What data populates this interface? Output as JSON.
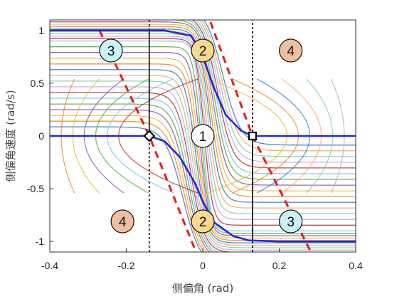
{
  "chart_data": {
    "type": "line",
    "title": "",
    "xlabel": "侧偏角 (rad)",
    "ylabel": "侧偏角速度 (rad/s)",
    "xlim": [
      -0.4,
      0.4
    ],
    "ylim": [
      -1.1,
      1.1
    ],
    "x_ticks": [
      "-0.4",
      "-0.2",
      "0",
      "0.2",
      "0.4"
    ],
    "y_ticks": [
      "1",
      "0.5",
      "0",
      "-0.5",
      "-1"
    ],
    "x_tick_values": [
      -0.4,
      -0.2,
      0,
      0.2,
      0.4
    ],
    "y_tick_values": [
      1,
      0.5,
      0,
      -0.5,
      -1
    ],
    "grid": false,
    "equilibria": [
      {
        "label": "diamond",
        "x": -0.14,
        "y": 0.0
      },
      {
        "label": "square",
        "x": 0.13,
        "y": 0.0
      }
    ],
    "separatrices": [
      {
        "name": "blue-upper",
        "color": "#2626e0",
        "x": [
          -0.4,
          -0.3,
          -0.2,
          -0.1,
          -0.03,
          0.0,
          0.03,
          0.06,
          0.1,
          0.13,
          0.2,
          0.3,
          0.4
        ],
        "y": [
          1.0,
          1.0,
          1.0,
          1.0,
          0.95,
          0.75,
          0.45,
          0.2,
          0.05,
          0.0,
          0.0,
          0.0,
          0.0
        ]
      },
      {
        "name": "blue-lower",
        "color": "#2626e0",
        "x": [
          -0.4,
          -0.3,
          -0.2,
          -0.14,
          -0.1,
          -0.06,
          -0.02,
          0.0,
          0.03,
          0.08,
          0.12,
          0.2,
          0.3,
          0.4
        ],
        "y": [
          0.0,
          0.0,
          0.0,
          0.0,
          -0.05,
          -0.2,
          -0.45,
          -0.62,
          -0.82,
          -0.95,
          -0.99,
          -1.0,
          -1.0,
          -1.0
        ]
      }
    ],
    "boundary_lines": [
      {
        "name": "red-dashed-left",
        "color": "#e02020",
        "x": [
          -0.27,
          -0.14,
          -0.02
        ],
        "y": [
          1.0,
          0.0,
          -1.08
        ]
      },
      {
        "name": "red-dashed-right",
        "color": "#e02020",
        "x": [
          0.02,
          0.13,
          0.28
        ],
        "y": [
          1.08,
          0.0,
          -1.08
        ]
      }
    ],
    "vertical_lines": [
      {
        "name": "left-solid-upper",
        "x": -0.14,
        "y": [
          0.0,
          1.0
        ],
        "style": "solid"
      },
      {
        "name": "left-dotted-upper",
        "x": -0.14,
        "y": [
          1.0,
          1.1
        ],
        "style": "dotted"
      },
      {
        "name": "left-dotted-lower",
        "x": -0.14,
        "y": [
          -1.1,
          0.0
        ],
        "style": "dotted"
      },
      {
        "name": "right-dotted-upper",
        "x": 0.13,
        "y": [
          0.0,
          1.1
        ],
        "style": "dotted"
      },
      {
        "name": "right-solid-lower",
        "x": 0.13,
        "y": [
          -1.0,
          0.0
        ],
        "style": "solid"
      },
      {
        "name": "right-dotted-lower",
        "x": 0.13,
        "y": [
          -1.1,
          -1.0
        ],
        "style": "dotted"
      }
    ],
    "region_labels": [
      {
        "text": "3",
        "x": -0.24,
        "y": 0.81,
        "color": "#c9f2f6"
      },
      {
        "text": "2",
        "x": 0.0,
        "y": 0.81,
        "color": "#f8d98e"
      },
      {
        "text": "4",
        "x": 0.23,
        "y": 0.81,
        "color": "#efc0a0"
      },
      {
        "text": "1",
        "x": 0.0,
        "y": 0.0,
        "color": "#ffffff"
      },
      {
        "text": "4",
        "x": -0.21,
        "y": -0.81,
        "color": "#efc0a0"
      },
      {
        "text": "2",
        "x": 0.0,
        "y": -0.81,
        "color": "#f8d98e"
      },
      {
        "text": "3",
        "x": 0.23,
        "y": -0.81,
        "color": "#c9f2f6"
      }
    ],
    "trajectory_colors": [
      "#2b7bba",
      "#e8862a",
      "#e8b830",
      "#8a4fa5",
      "#5aaa3c",
      "#6fc3e6",
      "#b0302a",
      "#c9a0d9",
      "#7fcf9a",
      "#f2a96b"
    ]
  }
}
